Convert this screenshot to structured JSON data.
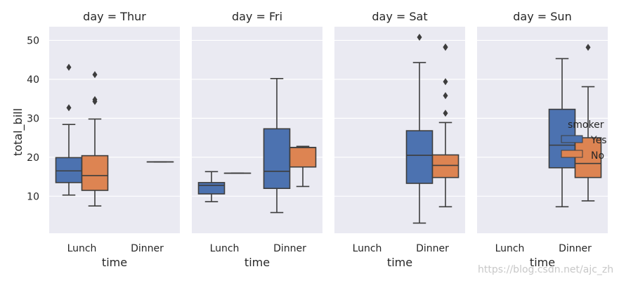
{
  "chart_data": {
    "type": "box",
    "facet_variable": "day",
    "facets": [
      {
        "title": "day = Thur",
        "day": "Thur"
      },
      {
        "title": "day = Fri",
        "day": "Fri"
      },
      {
        "title": "day = Sat",
        "day": "Sat"
      },
      {
        "title": "day = Sun",
        "day": "Sun"
      }
    ],
    "categories": [
      "Lunch",
      "Dinner"
    ],
    "xlabel": "time",
    "ylabel": "total_bill",
    "ylim": [
      0.5,
      53.5
    ],
    "yticks": [
      10,
      20,
      30,
      40,
      50
    ],
    "grid": true,
    "legend": {
      "title": "smoker",
      "position": "right",
      "entries": [
        {
          "label": "Yes",
          "color": "#4c72b0"
        },
        {
          "label": "No",
          "color": "#dd8452"
        }
      ]
    },
    "boxes": [
      {
        "day": "Thur",
        "time": "Lunch",
        "smoker": "Yes",
        "whislo": 10.3,
        "q1": 13.5,
        "med": 16.5,
        "q3": 19.9,
        "whishi": 28.4,
        "fliers": [
          32.7,
          43.1
        ]
      },
      {
        "day": "Thur",
        "time": "Lunch",
        "smoker": "No",
        "whislo": 7.5,
        "q1": 11.5,
        "med": 15.3,
        "q3": 20.4,
        "whishi": 29.8,
        "fliers": [
          34.3,
          34.8,
          41.2
        ]
      },
      {
        "day": "Thur",
        "time": "Dinner",
        "smoker": "No",
        "whislo": 18.8,
        "q1": 18.8,
        "med": 18.8,
        "q3": 18.8,
        "whishi": 18.8,
        "fliers": []
      },
      {
        "day": "Fri",
        "time": "Lunch",
        "smoker": "Yes",
        "whislo": 8.6,
        "q1": 10.6,
        "med": 12.8,
        "q3": 13.5,
        "whishi": 16.3,
        "fliers": []
      },
      {
        "day": "Fri",
        "time": "Lunch",
        "smoker": "No",
        "whislo": 15.9,
        "q1": 15.9,
        "med": 15.9,
        "q3": 15.9,
        "whishi": 15.9,
        "fliers": []
      },
      {
        "day": "Fri",
        "time": "Dinner",
        "smoker": "Yes",
        "whislo": 5.8,
        "q1": 12.0,
        "med": 16.4,
        "q3": 27.3,
        "whishi": 40.2,
        "fliers": []
      },
      {
        "day": "Fri",
        "time": "Dinner",
        "smoker": "No",
        "whislo": 12.5,
        "q1": 17.5,
        "med": 22.5,
        "q3": 22.5,
        "whishi": 22.8,
        "fliers": []
      },
      {
        "day": "Sat",
        "time": "Dinner",
        "smoker": "Yes",
        "whislo": 3.1,
        "q1": 13.3,
        "med": 20.5,
        "q3": 26.8,
        "whishi": 44.3,
        "fliers": [
          50.8
        ]
      },
      {
        "day": "Sat",
        "time": "Dinner",
        "smoker": "No",
        "whislo": 7.3,
        "q1": 14.8,
        "med": 17.9,
        "q3": 20.6,
        "whishi": 28.9,
        "fliers": [
          31.3,
          35.8,
          39.4,
          48.2,
          48.3
        ]
      },
      {
        "day": "Sun",
        "time": "Dinner",
        "smoker": "Yes",
        "whislo": 7.3,
        "q1": 17.3,
        "med": 23.1,
        "q3": 32.3,
        "whishi": 45.3,
        "fliers": []
      },
      {
        "day": "Sun",
        "time": "Dinner",
        "smoker": "No",
        "whislo": 8.8,
        "q1": 14.8,
        "med": 18.4,
        "q3": 25.0,
        "whishi": 38.1,
        "fliers": [
          48.2
        ]
      }
    ]
  },
  "watermark": "https://blog.csdn.net/ajc_zh"
}
